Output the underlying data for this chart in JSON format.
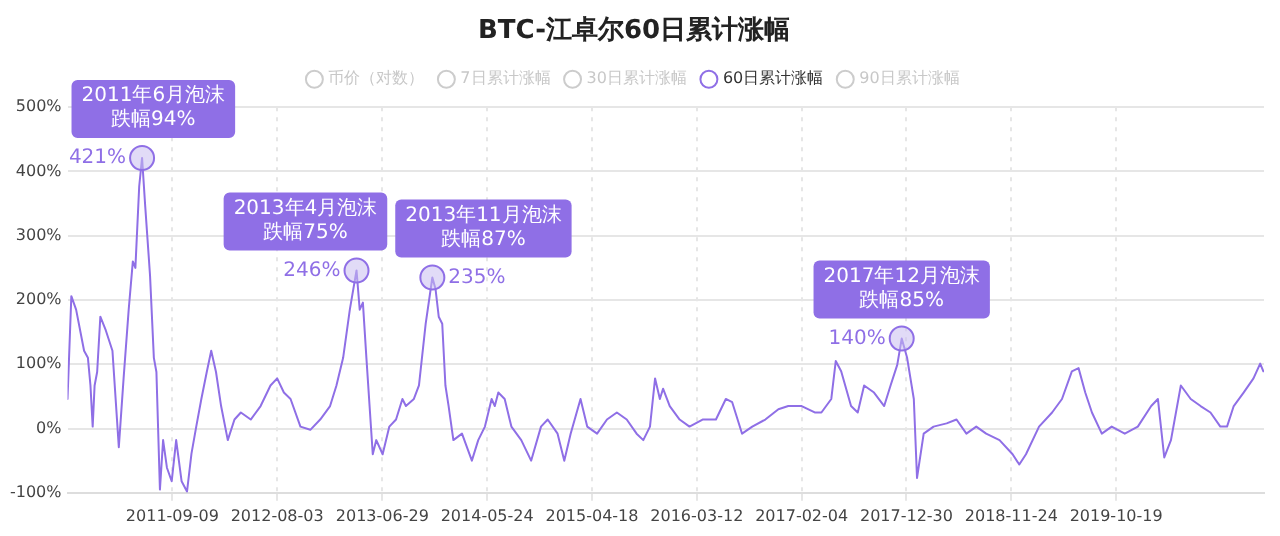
{
  "chart_data": {
    "type": "line",
    "title": "BTC-江卓尔60日累计涨幅",
    "legend": "top",
    "grid": true,
    "xlim": [
      "2010-10-15",
      "2021-01-25"
    ],
    "xticks": [
      "2011-09-09",
      "2012-08-03",
      "2013-06-29",
      "2014-05-24",
      "2015-04-18",
      "2016-03-12",
      "2017-02-04",
      "2017-12-30",
      "2018-11-24",
      "2019-10-19"
    ],
    "ylim": [
      -100,
      500
    ],
    "yticks": [
      {
        "value": -100,
        "label": "-100%"
      },
      {
        "value": 0,
        "label": "0%"
      },
      {
        "value": 100,
        "label": "100%"
      },
      {
        "value": 200,
        "label": "200%"
      },
      {
        "value": 300,
        "label": "300%"
      },
      {
        "value": 400,
        "label": "400%"
      },
      {
        "value": 500,
        "label": "500%"
      }
    ],
    "annotations": [
      {
        "text": "2011年6月泡沫",
        "x": "2011-06-06",
        "y": 421
      },
      {
        "text": "跌幅94%",
        "x": "2011-06-06",
        "y": 421
      },
      {
        "text": "2013年4月泡沫",
        "x": "2013-04-09",
        "y": 246
      },
      {
        "text": "跌幅75%",
        "x": "2013-04-09",
        "y": 246
      },
      {
        "text": "2013年11月泡沫",
        "x": "2013-12-03",
        "y": 235
      },
      {
        "text": "跌幅87%",
        "x": "2013-12-03",
        "y": 235
      },
      {
        "text": "2017年12月泡沫",
        "x": "2017-12-15",
        "y": 140
      },
      {
        "text": "跌幅85%",
        "x": "2017-12-15",
        "y": 140
      }
    ],
    "series": [
      {
        "name": "币价（对数）",
        "color": "#cccccc"
      },
      {
        "name": "7日累计涨幅",
        "color": "#cccccc"
      },
      {
        "name": "30日累计涨幅",
        "color": "#cccccc"
      },
      {
        "name": "60日累计涨幅",
        "color": "#8f6fe6",
        "x": [
          "2010-10-15",
          "2010-10-27",
          "2010-11-11",
          "2010-12-06",
          "2010-12-18",
          "2010-12-26",
          "2011-01-02",
          "2011-01-08",
          "2011-01-16",
          "2011-01-26",
          "2011-02-12",
          "2011-03-05",
          "2011-03-25",
          "2011-04-09",
          "2011-04-25",
          "2011-05-08",
          "2011-05-16",
          "2011-05-28",
          "2011-06-06",
          "2011-06-16",
          "2011-07-01",
          "2011-07-13",
          "2011-07-21",
          "2011-08-01",
          "2011-08-11",
          "2011-08-23",
          "2011-09-07",
          "2011-09-21",
          "2011-10-08",
          "2011-10-25",
          "2011-11-08",
          "2011-11-23",
          "2011-12-09",
          "2011-12-26",
          "2012-01-09",
          "2012-01-24",
          "2012-02-09",
          "2012-03-01",
          "2012-03-22",
          "2012-04-11",
          "2012-05-12",
          "2012-06-12",
          "2012-07-13",
          "2012-08-03",
          "2012-08-24",
          "2012-09-14",
          "2012-10-15",
          "2012-11-15",
          "2012-12-16",
          "2013-01-16",
          "2013-02-05",
          "2013-02-26",
          "2013-03-19",
          "2013-04-09",
          "2013-04-19",
          "2013-04-29",
          "2013-05-10",
          "2013-05-30",
          "2013-06-10",
          "2013-06-30",
          "2013-07-21",
          "2013-08-11",
          "2013-08-31",
          "2013-09-11",
          "2013-10-06",
          "2013-10-22",
          "2013-11-12",
          "2013-12-03",
          "2013-12-13",
          "2013-12-23",
          "2014-01-03",
          "2014-01-13",
          "2014-01-23",
          "2014-02-07",
          "2014-03-06",
          "2014-04-06",
          "2014-04-26",
          "2014-05-17",
          "2014-06-07",
          "2014-06-17",
          "2014-06-28",
          "2014-07-18",
          "2014-08-08",
          "2014-09-08",
          "2014-10-09",
          "2014-11-09",
          "2014-11-30",
          "2014-12-31",
          "2015-01-21",
          "2015-02-10",
          "2015-03-13",
          "2015-04-03",
          "2015-05-04",
          "2015-06-04",
          "2015-07-05",
          "2015-08-05",
          "2015-09-05",
          "2015-09-26",
          "2015-10-17",
          "2015-11-02",
          "2015-11-17",
          "2015-11-27",
          "2015-12-18",
          "2016-01-18",
          "2016-02-18",
          "2016-03-30",
          "2016-05-11",
          "2016-06-11",
          "2016-07-01",
          "2016-08-01",
          "2016-09-02",
          "2016-10-13",
          "2016-11-23",
          "2016-12-24",
          "2017-02-04",
          "2017-03-17",
          "2017-04-07",
          "2017-05-08",
          "2017-05-22",
          "2017-06-08",
          "2017-07-09",
          "2017-07-30",
          "2017-08-19",
          "2017-09-19",
          "2017-10-21",
          "2017-11-10",
          "2017-12-01",
          "2017-12-15",
          "2018-01-01",
          "2018-01-22",
          "2018-02-01",
          "2018-02-22",
          "2018-03-25",
          "2018-05-05",
          "2018-06-05",
          "2018-07-06",
          "2018-08-06",
          "2018-09-06",
          "2018-10-18",
          "2018-11-28",
          "2018-12-19",
          "2019-01-09",
          "2019-02-19",
          "2019-04-01",
          "2019-05-02",
          "2019-06-02",
          "2019-06-23",
          "2019-07-14",
          "2019-08-04",
          "2019-09-04",
          "2019-10-05",
          "2019-11-15",
          "2019-12-26",
          "2020-02-06",
          "2020-02-27",
          "2020-03-18",
          "2020-04-08",
          "2020-05-09",
          "2020-06-09",
          "2020-07-10",
          "2020-08-10",
          "2020-09-10",
          "2020-10-01",
          "2020-10-22",
          "2020-11-22",
          "2020-12-23",
          "2021-01-13",
          "2021-01-23"
        ],
        "values": [
          46,
          206,
          185,
          121,
          110,
          67,
          3,
          67,
          88,
          174,
          153,
          121,
          -29,
          78,
          185,
          260,
          250,
          377,
          421,
          345,
          238,
          110,
          88,
          -95,
          -18,
          -61,
          -82,
          -18,
          -82,
          -98,
          -39,
          3,
          46,
          88,
          121,
          88,
          35,
          -18,
          14,
          25,
          14,
          35,
          67,
          78,
          56,
          46,
          3,
          -2,
          14,
          35,
          67,
          110,
          185,
          246,
          185,
          196,
          110,
          -40,
          -18,
          -40,
          3,
          14,
          46,
          35,
          46,
          67,
          163,
          235,
          217,
          174,
          163,
          67,
          35,
          -18,
          -8,
          -50,
          -18,
          3,
          46,
          35,
          56,
          46,
          3,
          -18,
          -50,
          3,
          14,
          -8,
          -50,
          -8,
          46,
          3,
          -8,
          14,
          25,
          14,
          -8,
          -18,
          3,
          78,
          46,
          62,
          35,
          14,
          3,
          14,
          14,
          46,
          41,
          -8,
          3,
          14,
          30,
          35,
          35,
          25,
          25,
          46,
          105,
          89,
          35,
          25,
          67,
          56,
          35,
          67,
          99,
          140,
          110,
          46,
          -77,
          -8,
          3,
          8,
          14,
          -8,
          3,
          -8,
          -18,
          -40,
          -56,
          -40,
          3,
          25,
          46,
          89,
          94,
          56,
          25,
          -8,
          3,
          -8,
          3,
          35,
          46,
          -45,
          -18,
          67,
          46,
          35,
          25,
          3,
          3,
          35,
          56,
          78,
          101,
          89
        ],
        "value_labels": [
          null,
          null,
          null,
          null,
          null,
          null,
          null,
          null,
          null,
          null,
          null,
          null,
          null,
          null,
          null,
          null,
          null,
          null,
          "421%",
          null,
          null,
          null,
          null,
          null,
          null,
          null,
          null,
          null,
          null,
          null,
          null,
          null,
          null,
          null,
          null,
          null,
          null,
          null,
          null,
          null,
          null,
          null,
          null,
          null,
          null,
          null,
          null,
          null,
          null,
          null,
          null,
          null,
          null,
          "246%",
          null,
          null,
          null,
          null,
          null,
          null,
          null,
          null,
          null,
          null,
          null,
          null,
          null,
          "235%",
          null,
          null,
          null,
          null,
          null,
          null,
          null,
          null,
          null,
          null,
          null,
          null,
          null,
          null,
          null,
          null,
          null,
          null,
          null,
          null,
          null,
          null,
          null,
          null,
          null,
          null,
          null,
          null,
          null,
          null,
          null,
          null,
          null,
          null,
          null,
          null,
          null,
          null,
          null,
          null,
          null,
          null,
          null,
          null,
          null,
          null,
          null,
          null,
          null,
          null,
          null,
          null,
          null,
          null,
          null,
          null,
          null,
          null,
          null,
          "140%",
          null,
          null,
          null,
          null,
          null,
          null,
          null,
          null,
          null,
          null,
          null,
          null,
          null,
          null,
          null,
          null,
          null,
          null,
          null,
          null,
          null,
          null,
          null,
          null,
          null,
          null,
          null,
          null,
          null,
          null,
          null,
          null,
          null,
          null,
          null,
          null,
          null,
          null,
          null,
          null
        ]
      },
      {
        "name": "90日累计涨幅",
        "color": "#cccccc"
      }
    ]
  }
}
